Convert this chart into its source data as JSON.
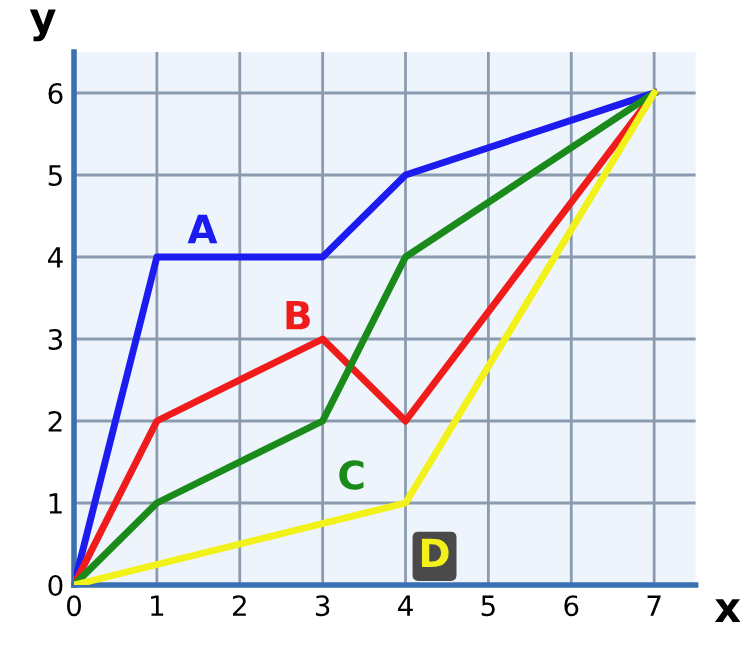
{
  "chart_data": {
    "type": "line",
    "xlabel": "x",
    "ylabel": "y",
    "x": [
      0,
      1,
      3,
      4,
      7
    ],
    "series": [
      {
        "name": "A",
        "color": "#1c1cf0",
        "values": [
          0,
          4,
          4,
          5,
          6
        ]
      },
      {
        "name": "B",
        "color": "#f01c1c",
        "values": [
          0,
          2,
          3,
          2,
          6
        ]
      },
      {
        "name": "C",
        "color": "#1a8a1a",
        "values": [
          0,
          1,
          2,
          4,
          6
        ]
      },
      {
        "name": "D",
        "color": "#f2f21a",
        "x": [
          0,
          4,
          7
        ],
        "values": [
          0,
          1,
          6
        ]
      }
    ],
    "xlim": [
      0,
      7.5
    ],
    "ylim": [
      0,
      6.5
    ],
    "xticks": [
      0,
      1,
      2,
      3,
      4,
      5,
      6,
      7
    ],
    "yticks": [
      0,
      1,
      2,
      3,
      4,
      5,
      6
    ],
    "grid": true,
    "marker": "none",
    "line_style": "solid",
    "legend": false
  }
}
